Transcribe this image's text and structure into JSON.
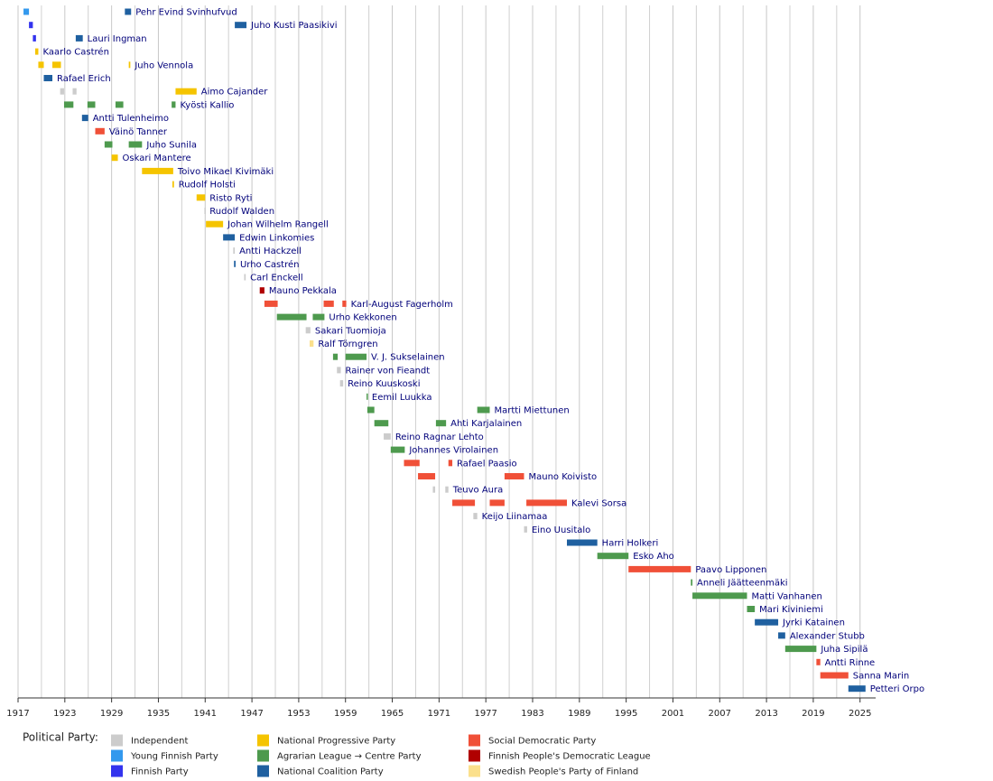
{
  "chart_data": {
    "type": "timeline",
    "xlim": [
      1917,
      2027
    ],
    "xticks": [
      1917,
      1923,
      1929,
      1935,
      1941,
      1947,
      1953,
      1959,
      1965,
      1971,
      1977,
      1983,
      1989,
      1995,
      2001,
      2007,
      2013,
      2019,
      2025
    ],
    "xminorticks": [
      1920,
      1926,
      1932,
      1938,
      1944,
      1950,
      1956,
      1962,
      1968,
      1974,
      1980,
      1986,
      1992,
      1998,
      2004,
      2010,
      2016,
      2022
    ],
    "grid": true,
    "legend_title": "Political Party:",
    "parties": [
      {
        "name": "Independent",
        "color": "#cccccc"
      },
      {
        "name": "Young Finnish Party",
        "color": "#3399ee"
      },
      {
        "name": "Finnish Party",
        "color": "#3333ee"
      },
      {
        "name": "National Progressive Party",
        "color": "#f5c400"
      },
      {
        "name": "Agrarian League → Centre Party",
        "color": "#4e9a4e"
      },
      {
        "name": "National Coalition Party",
        "color": "#1f60a0"
      },
      {
        "name": "Social Democratic Party",
        "color": "#f05038"
      },
      {
        "name": "Finnish People's Democratic League",
        "color": "#b00000"
      },
      {
        "name": "Swedish People's Party of Finland",
        "color": "#fbe08c"
      }
    ],
    "rows": [
      {
        "name": "Pehr Evind Svinhufvud",
        "terms": [
          {
            "start": 1917.7,
            "end": 1918.4,
            "color": "#3399ee"
          },
          {
            "start": 1930.7,
            "end": 1931.5,
            "color": "#1f60a0"
          }
        ]
      },
      {
        "name": "Juho Kusti Paasikivi",
        "terms": [
          {
            "start": 1918.4,
            "end": 1918.9,
            "color": "#3333ee"
          },
          {
            "start": 1944.8,
            "end": 1946.3,
            "color": "#1f60a0"
          }
        ]
      },
      {
        "name": "Lauri Ingman",
        "terms": [
          {
            "start": 1918.9,
            "end": 1919.3,
            "color": "#3333ee"
          },
          {
            "start": 1924.4,
            "end": 1925.3,
            "color": "#1f60a0"
          }
        ]
      },
      {
        "name": "Kaarlo Castrén",
        "terms": [
          {
            "start": 1919.2,
            "end": 1919.6,
            "color": "#f5c400"
          }
        ]
      },
      {
        "name": "Juho Vennola",
        "terms": [
          {
            "start": 1919.6,
            "end": 1920.3,
            "color": "#f5c400"
          },
          {
            "start": 1921.4,
            "end": 1922.5,
            "color": "#f5c400"
          },
          {
            "start": 1931.2,
            "end": 1931.4,
            "color": "#f5c400"
          }
        ]
      },
      {
        "name": "Rafael Erich",
        "terms": [
          {
            "start": 1920.3,
            "end": 1921.4,
            "color": "#1f60a0"
          }
        ]
      },
      {
        "name": "Aimo Cajander",
        "terms": [
          {
            "start": 1922.4,
            "end": 1922.9,
            "color": "#cccccc"
          },
          {
            "start": 1924.0,
            "end": 1924.5,
            "color": "#cccccc"
          },
          {
            "start": 1937.2,
            "end": 1939.9,
            "color": "#f5c400"
          }
        ]
      },
      {
        "name": "Kyösti Kallio",
        "terms": [
          {
            "start": 1922.9,
            "end": 1924.1,
            "color": "#4e9a4e"
          },
          {
            "start": 1925.9,
            "end": 1926.9,
            "color": "#4e9a4e"
          },
          {
            "start": 1929.5,
            "end": 1930.5,
            "color": "#4e9a4e"
          },
          {
            "start": 1936.7,
            "end": 1937.2,
            "color": "#4e9a4e"
          }
        ]
      },
      {
        "name": "Antti Tulenheimo",
        "terms": [
          {
            "start": 1925.2,
            "end": 1926.0,
            "color": "#1f60a0"
          }
        ]
      },
      {
        "name": "Väinö Tanner",
        "terms": [
          {
            "start": 1926.9,
            "end": 1928.1,
            "color": "#f05038"
          }
        ]
      },
      {
        "name": "Juho Sunila",
        "terms": [
          {
            "start": 1928.1,
            "end": 1929.1,
            "color": "#4e9a4e"
          },
          {
            "start": 1931.2,
            "end": 1932.9,
            "color": "#4e9a4e"
          }
        ]
      },
      {
        "name": "Oskari Mantere",
        "terms": [
          {
            "start": 1929.0,
            "end": 1929.8,
            "color": "#f5c400"
          }
        ]
      },
      {
        "name": "Toivo Mikael Kivimäki",
        "terms": [
          {
            "start": 1932.9,
            "end": 1936.9,
            "color": "#f5c400"
          }
        ]
      },
      {
        "name": "Rudolf Holsti",
        "terms": [
          {
            "start": 1936.8,
            "end": 1937.0,
            "color": "#f5c400"
          }
        ]
      },
      {
        "name": "Risto Ryti",
        "terms": [
          {
            "start": 1939.9,
            "end": 1941.0,
            "color": "#f5c400"
          }
        ]
      },
      {
        "name": "Rudolf Walden",
        "terms": [
          {
            "start": 1940.9,
            "end": 1941.0,
            "color": "#cccccc"
          }
        ]
      },
      {
        "name": "Johan Wilhelm Rangell",
        "terms": [
          {
            "start": 1941.1,
            "end": 1943.3,
            "color": "#f5c400"
          }
        ]
      },
      {
        "name": "Edwin Linkomies",
        "terms": [
          {
            "start": 1943.3,
            "end": 1944.8,
            "color": "#1f60a0"
          }
        ]
      },
      {
        "name": "Antti Hackzell",
        "terms": [
          {
            "start": 1944.6,
            "end": 1944.8,
            "color": "#cccccc"
          }
        ]
      },
      {
        "name": "Urho Castrén",
        "terms": [
          {
            "start": 1944.7,
            "end": 1944.9,
            "color": "#1f60a0"
          }
        ]
      },
      {
        "name": "Carl Enckell",
        "terms": [
          {
            "start": 1946.0,
            "end": 1946.2,
            "color": "#cccccc"
          }
        ]
      },
      {
        "name": "Mauno Pekkala",
        "terms": [
          {
            "start": 1948.0,
            "end": 1948.6,
            "color": "#b00000"
          }
        ]
      },
      {
        "name": "Karl-August Fagerholm",
        "terms": [
          {
            "start": 1948.6,
            "end": 1950.3,
            "color": "#f05038"
          },
          {
            "start": 1956.2,
            "end": 1957.5,
            "color": "#f05038"
          },
          {
            "start": 1958.6,
            "end": 1959.1,
            "color": "#f05038"
          }
        ]
      },
      {
        "name": "Urho Kekkonen",
        "terms": [
          {
            "start": 1950.2,
            "end": 1954.0,
            "color": "#4e9a4e"
          },
          {
            "start": 1954.8,
            "end": 1956.3,
            "color": "#4e9a4e"
          }
        ]
      },
      {
        "name": "Sakari Tuomioja",
        "terms": [
          {
            "start": 1953.9,
            "end": 1954.5,
            "color": "#cccccc"
          }
        ]
      },
      {
        "name": "Ralf Törngren",
        "terms": [
          {
            "start": 1954.4,
            "end": 1954.9,
            "color": "#fbe08c"
          }
        ]
      },
      {
        "name": "V. J. Sukselainen",
        "terms": [
          {
            "start": 1957.4,
            "end": 1958.0,
            "color": "#4e9a4e"
          },
          {
            "start": 1959.0,
            "end": 1961.7,
            "color": "#4e9a4e"
          }
        ]
      },
      {
        "name": "Rainer von Fieandt",
        "terms": [
          {
            "start": 1957.9,
            "end": 1958.4,
            "color": "#cccccc"
          }
        ]
      },
      {
        "name": "Reino Kuuskoski",
        "terms": [
          {
            "start": 1958.3,
            "end": 1958.7,
            "color": "#cccccc"
          }
        ]
      },
      {
        "name": "Eemil Luukka",
        "terms": [
          {
            "start": 1961.7,
            "end": 1961.8,
            "color": "#4e9a4e"
          }
        ]
      },
      {
        "name": "Martti Miettunen",
        "terms": [
          {
            "start": 1961.8,
            "end": 1962.7,
            "color": "#4e9a4e"
          },
          {
            "start": 1975.9,
            "end": 1977.5,
            "color": "#4e9a4e"
          }
        ]
      },
      {
        "name": "Ahti Karjalainen",
        "terms": [
          {
            "start": 1962.7,
            "end": 1964.5,
            "color": "#4e9a4e"
          },
          {
            "start": 1970.6,
            "end": 1971.9,
            "color": "#4e9a4e"
          }
        ]
      },
      {
        "name": "Reino Ragnar Lehto",
        "terms": [
          {
            "start": 1963.9,
            "end": 1964.8,
            "color": "#cccccc"
          }
        ]
      },
      {
        "name": "Johannes Virolainen",
        "terms": [
          {
            "start": 1964.8,
            "end": 1966.6,
            "color": "#4e9a4e"
          }
        ]
      },
      {
        "name": "Rafael Paasio",
        "terms": [
          {
            "start": 1966.5,
            "end": 1968.5,
            "color": "#f05038"
          },
          {
            "start": 1972.2,
            "end": 1972.7,
            "color": "#f05038"
          }
        ]
      },
      {
        "name": "Mauno Koivisto",
        "terms": [
          {
            "start": 1968.3,
            "end": 1970.5,
            "color": "#f05038"
          },
          {
            "start": 1979.4,
            "end": 1981.9,
            "color": "#f05038"
          }
        ]
      },
      {
        "name": "Teuvo Aura",
        "terms": [
          {
            "start": 1970.2,
            "end": 1970.5,
            "color": "#cccccc"
          },
          {
            "start": 1971.8,
            "end": 1972.2,
            "color": "#cccccc"
          }
        ]
      },
      {
        "name": "Kalevi Sorsa",
        "terms": [
          {
            "start": 1972.7,
            "end": 1975.6,
            "color": "#f05038"
          },
          {
            "start": 1977.5,
            "end": 1979.4,
            "color": "#f05038"
          },
          {
            "start": 1982.2,
            "end": 1987.4,
            "color": "#f05038"
          }
        ]
      },
      {
        "name": "Keijo Liinamaa",
        "terms": [
          {
            "start": 1975.4,
            "end": 1975.9,
            "color": "#cccccc"
          }
        ]
      },
      {
        "name": "Eino Uusitalo",
        "terms": [
          {
            "start": 1981.9,
            "end": 1982.3,
            "color": "#cccccc"
          }
        ]
      },
      {
        "name": "Harri Holkeri",
        "terms": [
          {
            "start": 1987.4,
            "end": 1991.3,
            "color": "#1f60a0"
          }
        ]
      },
      {
        "name": "Esko Aho",
        "terms": [
          {
            "start": 1991.3,
            "end": 1995.3,
            "color": "#4e9a4e"
          }
        ]
      },
      {
        "name": "Paavo Lipponen",
        "terms": [
          {
            "start": 1995.3,
            "end": 2003.3,
            "color": "#f05038"
          }
        ]
      },
      {
        "name": "Anneli Jäätteenmäki",
        "terms": [
          {
            "start": 2003.3,
            "end": 2003.5,
            "color": "#4e9a4e"
          }
        ]
      },
      {
        "name": "Matti Vanhanen",
        "terms": [
          {
            "start": 2003.5,
            "end": 2010.5,
            "color": "#4e9a4e"
          }
        ]
      },
      {
        "name": "Mari Kiviniemi",
        "terms": [
          {
            "start": 2010.5,
            "end": 2011.5,
            "color": "#4e9a4e"
          }
        ]
      },
      {
        "name": "Jyrki Katainen",
        "terms": [
          {
            "start": 2011.5,
            "end": 2014.5,
            "color": "#1f60a0"
          }
        ]
      },
      {
        "name": "Alexander Stubb",
        "terms": [
          {
            "start": 2014.5,
            "end": 2015.4,
            "color": "#1f60a0"
          }
        ]
      },
      {
        "name": "Juha Sipilä",
        "terms": [
          {
            "start": 2015.4,
            "end": 2019.4,
            "color": "#4e9a4e"
          }
        ]
      },
      {
        "name": "Antti Rinne",
        "terms": [
          {
            "start": 2019.4,
            "end": 2019.9,
            "color": "#f05038"
          }
        ]
      },
      {
        "name": "Sanna Marin",
        "terms": [
          {
            "start": 2019.9,
            "end": 2023.5,
            "color": "#f05038"
          }
        ]
      },
      {
        "name": "Petteri Orpo",
        "terms": [
          {
            "start": 2023.5,
            "end": 2025.7,
            "color": "#1f60a0"
          }
        ]
      }
    ]
  }
}
